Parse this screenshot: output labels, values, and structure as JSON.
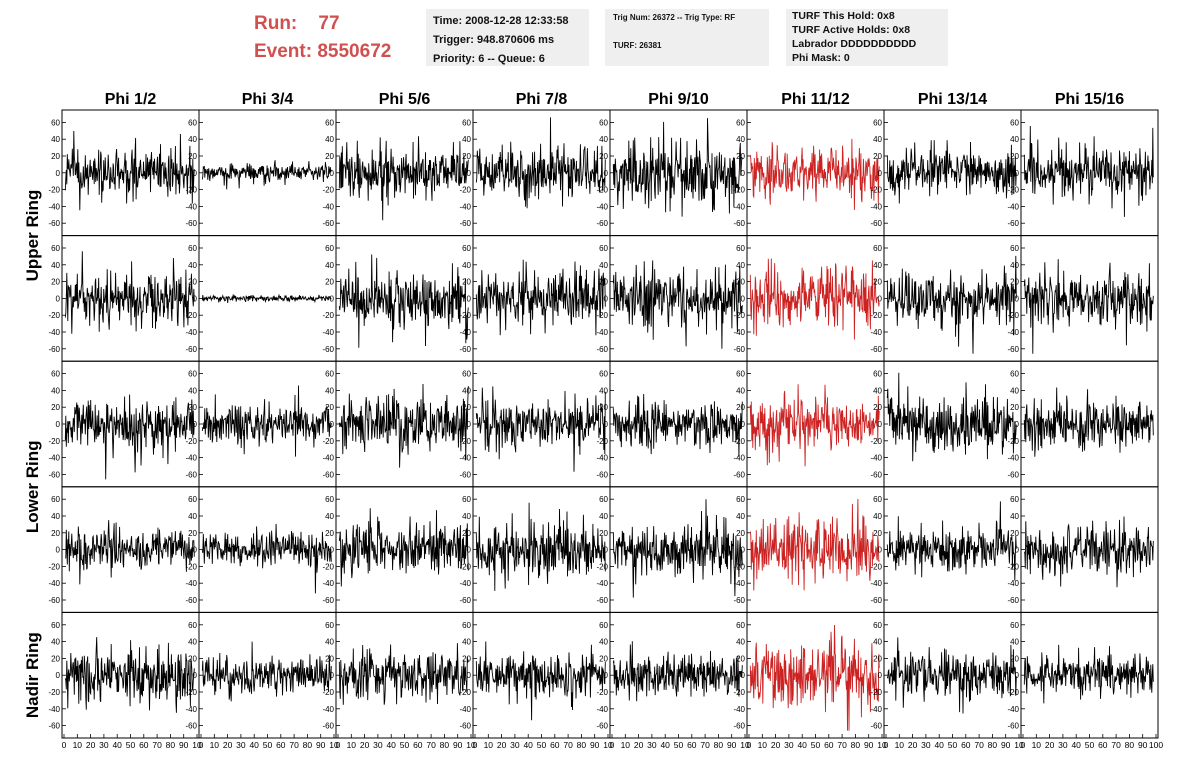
{
  "header": {
    "run_label": "Run:",
    "run_value": "77",
    "event_label": "Event:",
    "event_value": "8550672",
    "box1": [
      "Time: 2008-12-28 12:33:58",
      "Trigger: 948.870606 ms",
      "Priority: 6 -- Queue: 6"
    ],
    "box2": [
      "Trig Num: 26372 -- Trig Type: RF",
      "TURF: 26381"
    ],
    "box3": [
      "TURF This Hold: 0x8",
      "TURF Active Holds: 0x8",
      "Labrador DDDDDDDDDD",
      "Phi Mask: 0"
    ]
  },
  "colors": {
    "waveform": "#000000",
    "triggered": "#cc2222",
    "runinfo": "#d05050",
    "box": "#efefef"
  },
  "chart_data": {
    "type": "line",
    "title": "",
    "xlabel": "",
    "ylabel": "",
    "columns": [
      "Phi 1/2",
      "Phi 3/4",
      "Phi 5/6",
      "Phi 7/8",
      "Phi 9/10",
      "Phi 11/12",
      "Phi 13/14",
      "Phi 15/16"
    ],
    "rings": [
      {
        "label": "Upper Ring",
        "rows": [
          0,
          1
        ]
      },
      {
        "label": "Lower Ring",
        "rows": [
          2,
          3
        ]
      },
      {
        "label": "Nadir Ring",
        "rows": [
          4
        ]
      }
    ],
    "xlim": [
      0,
      100
    ],
    "ylim": [
      -70,
      70
    ],
    "y_ticks": [
      60,
      40,
      20,
      0,
      -20,
      -40,
      -60
    ],
    "x_ticks": [
      0,
      10,
      20,
      30,
      40,
      50,
      60,
      70,
      80,
      90,
      100
    ],
    "x_tick_labels_last_column": [
      "0",
      "10",
      "20",
      "30",
      "40",
      "50",
      "60",
      "70",
      "80",
      "90",
      "100"
    ],
    "x_tick_labels_other_columns": [
      "0",
      "10",
      "20",
      "30",
      "40",
      "50",
      "60",
      "70",
      "80",
      "90",
      "10"
    ],
    "highlighted_column": 5,
    "samples_per_trace": 260,
    "grid": false,
    "traces": [
      [
        {
          "amp": 14,
          "seed": 101
        },
        {
          "amp": 5,
          "seed": 102
        },
        {
          "amp": 16,
          "seed": 103
        },
        {
          "amp": 16,
          "seed": 104
        },
        {
          "amp": 20,
          "seed": 105
        },
        {
          "amp": 17,
          "seed": 106
        },
        {
          "amp": 13,
          "seed": 107
        },
        {
          "amp": 15,
          "seed": 108
        }
      ],
      [
        {
          "amp": 15,
          "seed": 201
        },
        {
          "amp": 2,
          "seed": 202
        },
        {
          "amp": 17,
          "seed": 203
        },
        {
          "amp": 16,
          "seed": 204
        },
        {
          "amp": 17,
          "seed": 205
        },
        {
          "amp": 19,
          "seed": 206
        },
        {
          "amp": 15,
          "seed": 207
        },
        {
          "amp": 16,
          "seed": 208
        }
      ],
      [
        {
          "amp": 15,
          "seed": 301
        },
        {
          "amp": 12,
          "seed": 302
        },
        {
          "amp": 16,
          "seed": 303
        },
        {
          "amp": 15,
          "seed": 304
        },
        {
          "amp": 14,
          "seed": 305
        },
        {
          "amp": 16,
          "seed": 306
        },
        {
          "amp": 16,
          "seed": 307
        },
        {
          "amp": 14,
          "seed": 308
        }
      ],
      [
        {
          "amp": 13,
          "seed": 401
        },
        {
          "amp": 11,
          "seed": 402
        },
        {
          "amp": 15,
          "seed": 403
        },
        {
          "amp": 16,
          "seed": 404
        },
        {
          "amp": 15,
          "seed": 405
        },
        {
          "amp": 20,
          "seed": 406
        },
        {
          "amp": 13,
          "seed": 407
        },
        {
          "amp": 14,
          "seed": 408
        }
      ],
      [
        {
          "amp": 16,
          "seed": 501
        },
        {
          "amp": 11,
          "seed": 502
        },
        {
          "amp": 15,
          "seed": 503
        },
        {
          "amp": 13,
          "seed": 504
        },
        {
          "amp": 13,
          "seed": 505
        },
        {
          "amp": 19,
          "seed": 506
        },
        {
          "amp": 14,
          "seed": 507
        },
        {
          "amp": 14,
          "seed": 508
        }
      ]
    ]
  }
}
